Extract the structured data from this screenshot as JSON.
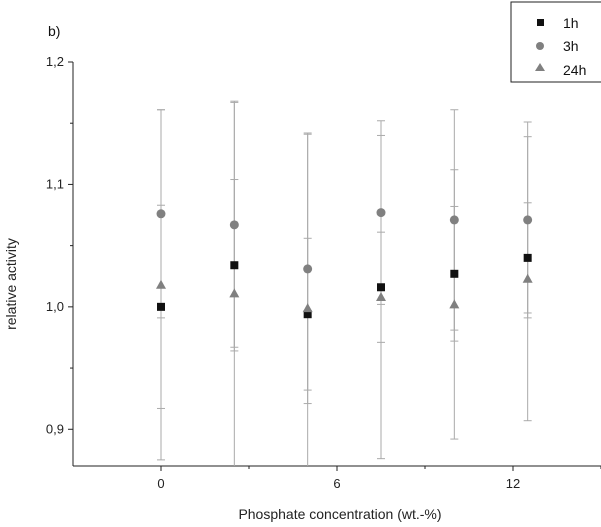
{
  "chart_data": {
    "type": "scatter",
    "panel_label": "b)",
    "xlabel": "Phosphate concentration (wt.-%)",
    "ylabel": "relative activity",
    "xlim": [
      -3,
      15
    ],
    "ylim": [
      0.87,
      1.2
    ],
    "xticks": [
      0,
      6,
      12
    ],
    "yticks": [
      0.9,
      1.0,
      1.1,
      1.2
    ],
    "ytick_labels": [
      "0,9",
      "1,0",
      "1,1",
      "1,2"
    ],
    "grid": false,
    "legend_position": "top-right",
    "series": [
      {
        "name": "1h",
        "marker": "square",
        "color": "#111111",
        "x": [
          0,
          2.5,
          5,
          7.5,
          10,
          12.5
        ],
        "y": [
          1.0,
          1.034,
          0.994,
          1.016,
          1.027,
          1.04
        ],
        "yerr": [
          0.083,
          0.07,
          0.062,
          0.045,
          0.055,
          0.045
        ]
      },
      {
        "name": "3h",
        "marker": "circle",
        "color": "#808080",
        "x": [
          0,
          2.5,
          5,
          7.5,
          10,
          12.5
        ],
        "y": [
          1.076,
          1.067,
          1.031,
          1.077,
          1.071,
          1.071
        ],
        "yerr": [
          0.085,
          0.1,
          0.11,
          0.075,
          0.09,
          0.08
        ]
      },
      {
        "name": "24h",
        "marker": "triangle",
        "color": "#808080",
        "x": [
          0,
          2.5,
          5,
          7.5,
          10,
          12.5
        ],
        "y": [
          1.018,
          1.011,
          0.999,
          1.008,
          1.002,
          1.023
        ],
        "yerr": [
          0.143,
          0.157,
          0.143,
          0.132,
          0.11,
          0.116
        ]
      }
    ]
  }
}
